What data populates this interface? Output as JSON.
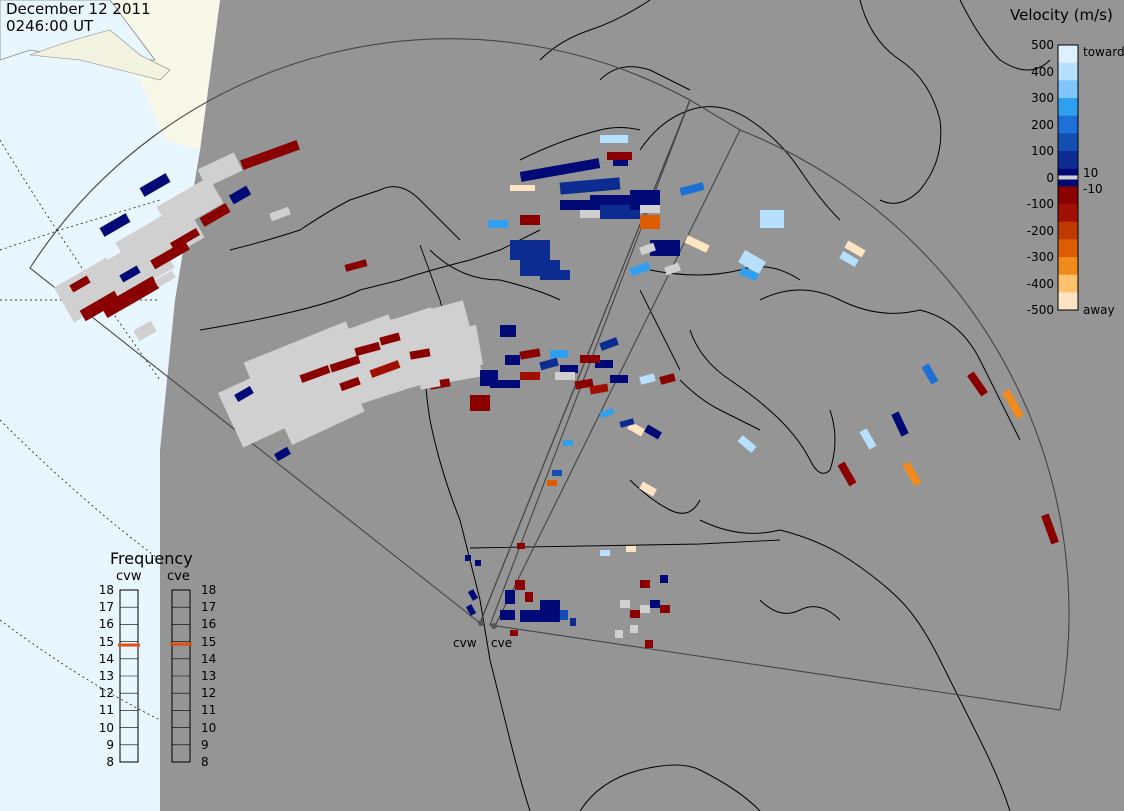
{
  "header": {
    "date": "December 12 2011",
    "time": "0246:00 UT"
  },
  "velocity_legend": {
    "title": "Velocity (m/s)",
    "ticks": [
      "500",
      "400",
      "300",
      "200",
      "100",
      "0",
      "-100",
      "-200",
      "-300",
      "-400",
      "-500"
    ],
    "small_ticks": [
      "10",
      "-10"
    ],
    "toward_label": "toward",
    "away_label": "away",
    "colors": [
      "#ddf0ff",
      "#b7e0ff",
      "#7fc6ff",
      "#2f9fef",
      "#1c70d6",
      "#134fb2",
      "#0d2c92",
      "#000a76",
      "#8a0000",
      "#a01000",
      "#c03a00",
      "#de5c00",
      "#f08b1c",
      "#ffc16e",
      "#ffe4c4"
    ]
  },
  "frequency_legend": {
    "title": "Frequency",
    "radars": [
      {
        "name": "cvw",
        "current_mhz": 14.8
      },
      {
        "name": "cve",
        "current_mhz": 14.85
      }
    ],
    "ticks": [
      "18",
      "17",
      "16",
      "15",
      "14",
      "13",
      "12",
      "11",
      "10",
      "9",
      "8"
    ],
    "indicator_color": "#e05010"
  },
  "sites": [
    {
      "name": "cvw"
    },
    {
      "name": "cve"
    }
  ],
  "colors": {
    "background": "#959595",
    "ocean": "#e8f6ff",
    "ice": "#f8f8e8",
    "low_velocity": "#d0d0d0"
  }
}
